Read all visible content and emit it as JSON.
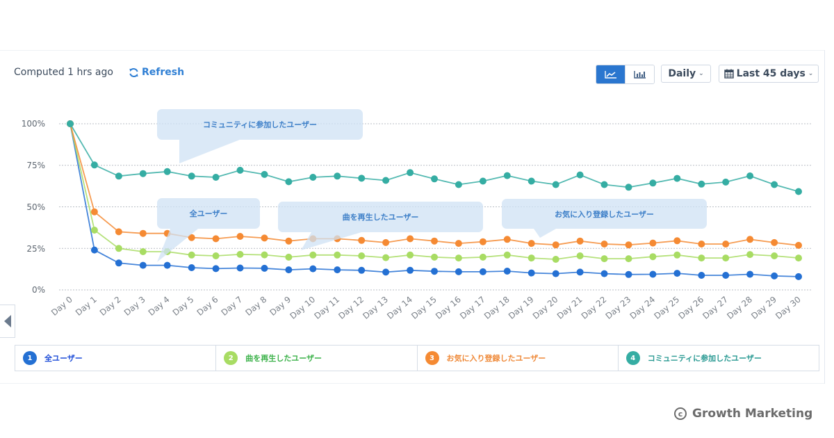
{
  "header": {
    "computed_text": "Computed 1 hrs ago",
    "refresh_label": "Refresh",
    "refresh_icon": "refresh-icon",
    "view_toggle": [
      {
        "icon": "line-chart-icon",
        "active": true
      },
      {
        "icon": "bar-chart-icon",
        "active": false
      }
    ],
    "interval_label": "Daily",
    "range_label": "Last 45 days",
    "range_icon": "calendar-icon"
  },
  "nav": {
    "prev_icon": "caret-left-icon"
  },
  "callouts": [
    {
      "text": "コミュニティに参加したユーザー",
      "series": 3
    },
    {
      "text": "全ユーザー",
      "series": 0
    },
    {
      "text": "曲を再生したユーザー",
      "series": 1
    },
    {
      "text": "お気に入り登録したユーザー",
      "series": 2
    }
  ],
  "chart_data": {
    "type": "line",
    "title": "",
    "xlabel": "",
    "ylabel": "",
    "ylim": [
      0,
      100
    ],
    "yticks": [
      "100%",
      "75%",
      "50%",
      "25%",
      "0%"
    ],
    "ytick_values": [
      100,
      75,
      50,
      25,
      0
    ],
    "grid": true,
    "legend_position": "bottom",
    "categories": [
      "Day 0",
      "Day 1",
      "Day 2",
      "Day 3",
      "Day 4",
      "Day 5",
      "Day 6",
      "Day 7",
      "Day 8",
      "Day 9",
      "Day 10",
      "Day 11",
      "Day 12",
      "Day 13",
      "Day 14",
      "Day 15",
      "Day 16",
      "Day 17",
      "Day 18",
      "Day 19",
      "Day 20",
      "Day 21",
      "Day 22",
      "Day 23",
      "Day 24",
      "Day 25",
      "Day 26",
      "Day 27",
      "Day 28",
      "Day 29",
      "Day 30"
    ],
    "series": [
      {
        "name": "全ユーザー",
        "index": "1",
        "color": "#2470d3",
        "legend_color": "#1f4ed8",
        "values": [
          100,
          24,
          16.2,
          14.8,
          14.8,
          13.4,
          12.8,
          13.2,
          13,
          12.1,
          12.7,
          12.1,
          11.8,
          10.7,
          11.8,
          11.2,
          10.9,
          10.9,
          11.3,
          10.2,
          9.8,
          10.7,
          9.8,
          9.3,
          9.4,
          10,
          8.8,
          8.8,
          9.4,
          8.4,
          8
        ]
      },
      {
        "name": "曲を再生したユーザー",
        "index": "2",
        "color": "#a8dc63",
        "legend_color": "#3cb24a",
        "values": [
          100,
          36,
          25,
          23,
          23,
          21,
          20.5,
          21.4,
          21.1,
          19.7,
          21,
          21,
          20.5,
          19.4,
          21,
          19.7,
          19.2,
          19.7,
          21,
          19.2,
          18.4,
          20.5,
          18.8,
          18.8,
          20,
          21,
          19.2,
          19.2,
          21.3,
          20.5,
          19.2
        ]
      },
      {
        "name": "お気に入り登録したユーザー",
        "index": "3",
        "color": "#f58a33",
        "legend_color": "#ef8a3a",
        "values": [
          100,
          47,
          35,
          34,
          34,
          31.5,
          30.8,
          32.2,
          31.2,
          29.4,
          30.8,
          30.8,
          29.8,
          28.5,
          30.8,
          29.4,
          28,
          29,
          30.4,
          28,
          27.1,
          29.4,
          27.6,
          27.1,
          28.2,
          29.6,
          27.6,
          27.6,
          30.4,
          28.5,
          26.8
        ]
      },
      {
        "name": "コミュニティに参加したユーザー",
        "index": "4",
        "color": "#35ada3",
        "legend_color": "#2a9a93",
        "values": [
          100,
          75.2,
          68.5,
          70,
          71.2,
          68.5,
          67.8,
          72,
          69.5,
          65.1,
          67.8,
          68.5,
          67.2,
          65.9,
          70.6,
          66.8,
          63.4,
          65.5,
          68.8,
          65.5,
          63.4,
          69.2,
          63.4,
          61.8,
          64.3,
          67.1,
          63.7,
          64.9,
          68.6,
          63.4,
          59.2
        ]
      }
    ]
  },
  "watermark": {
    "text": "Growth Marketing",
    "icon": "copyright-icon"
  }
}
